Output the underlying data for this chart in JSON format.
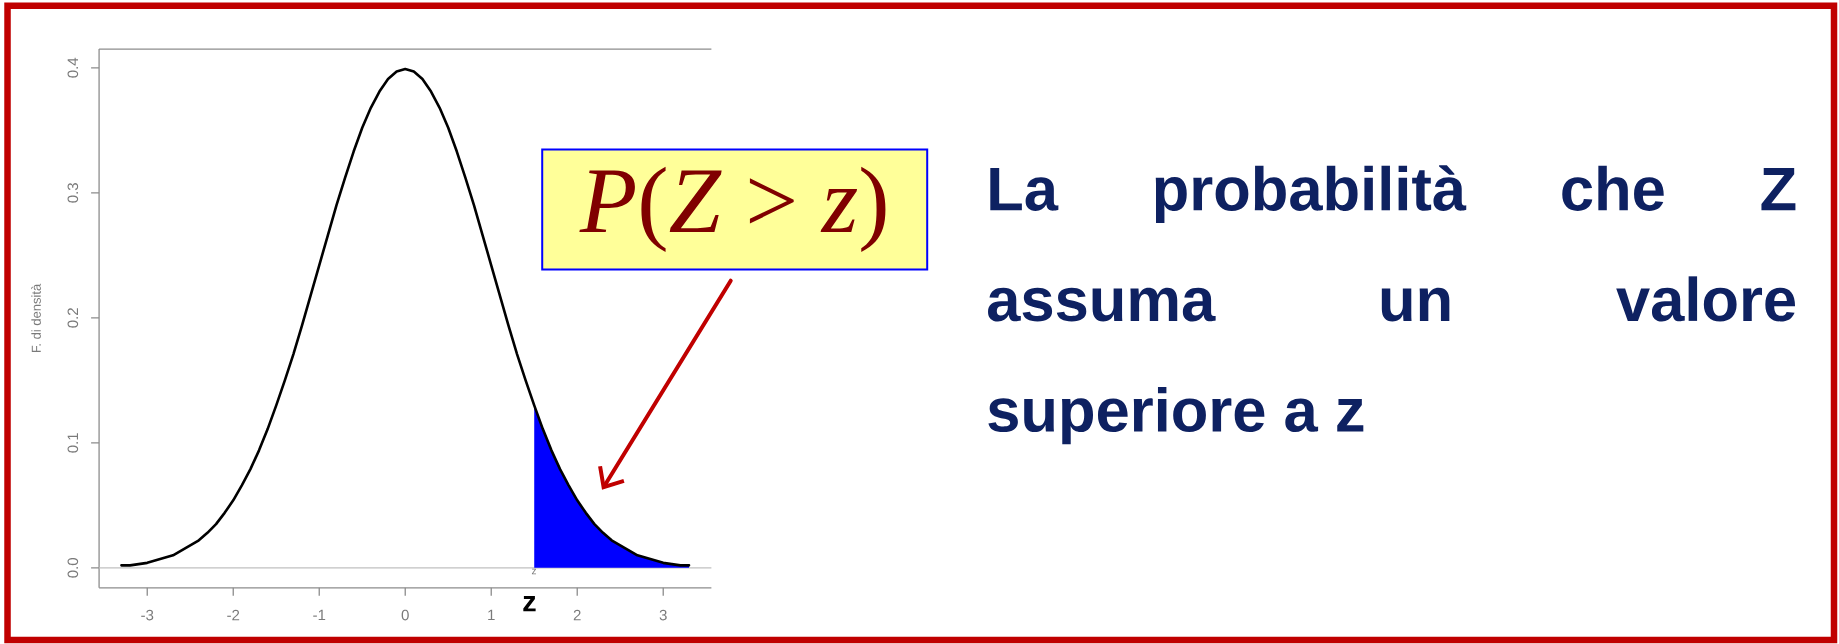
{
  "chart_data": {
    "type": "line",
    "ylabel": "F. di densità",
    "xlim": [
      -3.56,
      3.56
    ],
    "ylim": [
      -0.016,
      0.415
    ],
    "xticks": [
      -3,
      -2,
      -1,
      0,
      1,
      2,
      3
    ],
    "yticks": [
      {
        "value": 0,
        "label": "0.0"
      },
      0.1,
      0.2,
      0.3,
      0.4
    ],
    "series": [
      {
        "color": "#000000",
        "x": [
          -3.3,
          -3.2,
          -3.1,
          -3.0,
          -2.9,
          -2.8,
          -2.7,
          -2.6,
          -2.5,
          -2.4,
          -2.3,
          -2.2,
          -2.1,
          -2.0,
          -1.9,
          -1.8,
          -1.7,
          -1.6,
          -1.5,
          -1.4,
          -1.3,
          -1.2,
          -1.1,
          -1.0,
          -0.9,
          -0.8,
          -0.7,
          -0.6,
          -0.5,
          -0.4,
          -0.3,
          -0.2,
          -0.1,
          0,
          0.1,
          0.2,
          0.3,
          0.4,
          0.5,
          0.6,
          0.7,
          0.8,
          0.9,
          1.0,
          1.1,
          1.2,
          1.3,
          1.4,
          1.5,
          1.6,
          1.7,
          1.8,
          1.9,
          2.0,
          2.1,
          2.2,
          2.3,
          2.4,
          2.5,
          2.6,
          2.7,
          2.8,
          2.9,
          3.0,
          3.1,
          3.2,
          3.3
        ],
        "values": [
          0.002,
          0.002,
          0.003,
          0.004,
          0.006,
          0.008,
          0.01,
          0.014,
          0.018,
          0.022,
          0.028,
          0.035,
          0.044,
          0.054,
          0.066,
          0.079,
          0.094,
          0.111,
          0.13,
          0.15,
          0.171,
          0.194,
          0.218,
          0.242,
          0.266,
          0.29,
          0.312,
          0.333,
          0.352,
          0.368,
          0.381,
          0.391,
          0.397,
          0.399,
          0.397,
          0.391,
          0.381,
          0.368,
          0.352,
          0.333,
          0.312,
          0.29,
          0.266,
          0.242,
          0.218,
          0.194,
          0.171,
          0.15,
          0.13,
          0.111,
          0.094,
          0.079,
          0.066,
          0.054,
          0.044,
          0.035,
          0.028,
          0.022,
          0.018,
          0.014,
          0.01,
          0.008,
          0.006,
          0.004,
          0.003,
          0.002,
          0.002
        ]
      },
      {
        "type": "area",
        "color": "#0000ff",
        "x": [
          1.5,
          1.6,
          1.7,
          1.8,
          1.9,
          2.0,
          2.1,
          2.2,
          2.3,
          2.4,
          2.5,
          2.6,
          2.7,
          2.8,
          2.9,
          3.0,
          3.1,
          3.2,
          3.3
        ],
        "values": [
          0.13,
          0.111,
          0.094,
          0.079,
          0.066,
          0.054,
          0.044,
          0.035,
          0.028,
          0.022,
          0.018,
          0.014,
          0.01,
          0.008,
          0.006,
          0.004,
          0.003,
          0.002,
          0.002
        ]
      }
    ],
    "ref_lines": [
      {
        "axis": "y",
        "value": 0,
        "color": "#c0c0c0"
      }
    ],
    "annotations": [
      "*P*(*Z* > *z*)",
      "z",
      "z",
      "La probabilità che Z assuma un valore superiore a z"
    ]
  }
}
